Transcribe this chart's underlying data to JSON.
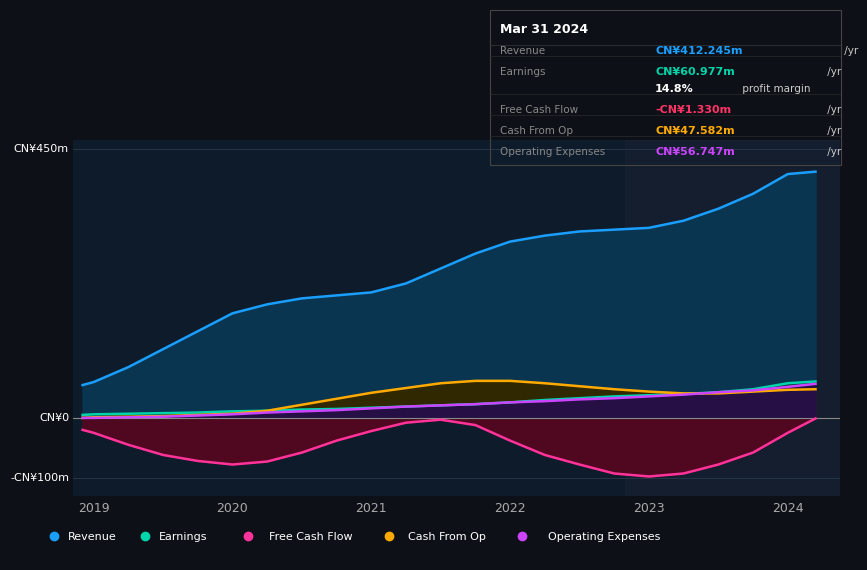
{
  "bg_color": "#0d1117",
  "plot_bg_color": "#0d1b2a",
  "grid_color": "#253545",
  "title_box": {
    "date": "Mar 31 2024",
    "rows": [
      {
        "label": "Revenue",
        "value": "CN¥412.245m",
        "suffix": " /yr",
        "value_color": "#1a9fff"
      },
      {
        "label": "Earnings",
        "value": "CN¥60.977m",
        "suffix": " /yr",
        "value_color": "#00d4aa"
      },
      {
        "label": "",
        "value": "14.8%",
        "suffix": " profit margin",
        "value_color": "#ffffff"
      },
      {
        "label": "Free Cash Flow",
        "value": "-CN¥1.330m",
        "suffix": " /yr",
        "value_color": "#ff3366"
      },
      {
        "label": "Cash From Op",
        "value": "CN¥47.582m",
        "suffix": " /yr",
        "value_color": "#ffaa00"
      },
      {
        "label": "Operating Expenses",
        "value": "CN¥56.747m",
        "suffix": " /yr",
        "value_color": "#cc44ff"
      }
    ]
  },
  "x_years": [
    2018.92,
    2019.0,
    2019.25,
    2019.5,
    2019.75,
    2020.0,
    2020.25,
    2020.5,
    2020.75,
    2021.0,
    2021.25,
    2021.5,
    2021.75,
    2022.0,
    2022.25,
    2022.5,
    2022.75,
    2023.0,
    2023.25,
    2023.5,
    2023.75,
    2024.0,
    2024.2
  ],
  "revenue": [
    55,
    60,
    85,
    115,
    145,
    175,
    190,
    200,
    205,
    210,
    225,
    250,
    275,
    295,
    305,
    312,
    315,
    318,
    330,
    350,
    375,
    408,
    412
  ],
  "earnings": [
    5,
    6,
    7,
    8,
    9,
    11,
    12,
    14,
    15,
    17,
    19,
    21,
    23,
    26,
    30,
    33,
    36,
    38,
    40,
    43,
    48,
    58,
    61
  ],
  "free_cash": [
    -20,
    -25,
    -45,
    -62,
    -72,
    -78,
    -73,
    -58,
    -38,
    -22,
    -8,
    -3,
    -12,
    -38,
    -62,
    -78,
    -93,
    -98,
    -93,
    -78,
    -58,
    -25,
    -1
  ],
  "cash_op": [
    0,
    1,
    2,
    3,
    5,
    7,
    12,
    22,
    32,
    42,
    50,
    58,
    62,
    62,
    58,
    53,
    48,
    44,
    41,
    41,
    44,
    47,
    48
  ],
  "op_expenses": [
    0,
    0,
    1,
    2,
    4,
    6,
    9,
    11,
    13,
    16,
    19,
    21,
    23,
    26,
    28,
    31,
    33,
    36,
    39,
    43,
    46,
    52,
    57
  ],
  "ylim": [
    -130,
    465
  ],
  "yticks_labels": [
    "CN¥450m",
    "CN¥0",
    "-CN¥100m"
  ],
  "yticks_values": [
    450,
    0,
    -100
  ],
  "xlim_left": 2018.85,
  "xlim_right": 2024.38,
  "xticks": [
    2019,
    2020,
    2021,
    2022,
    2023,
    2024
  ],
  "revenue_color": "#1a9fff",
  "earnings_color": "#00d4aa",
  "free_cash_color": "#ff3399",
  "cash_op_color": "#ffaa00",
  "op_expenses_color": "#cc44ff",
  "revenue_fill": "#0a3550",
  "earnings_fill": "#073d30",
  "free_cash_fill": "#500820",
  "cash_op_fill": "#302800",
  "op_expenses_fill": "#250f45",
  "highlight_x_start": 2022.83,
  "highlight_x_end": 2024.38,
  "highlight_color": "#162030",
  "zero_line_color": "#888888",
  "legend_items": [
    {
      "label": "Revenue",
      "color": "#1a9fff"
    },
    {
      "label": "Earnings",
      "color": "#00d4aa"
    },
    {
      "label": "Free Cash Flow",
      "color": "#ff3399"
    },
    {
      "label": "Cash From Op",
      "color": "#ffaa00"
    },
    {
      "label": "Operating Expenses",
      "color": "#cc44ff"
    }
  ]
}
